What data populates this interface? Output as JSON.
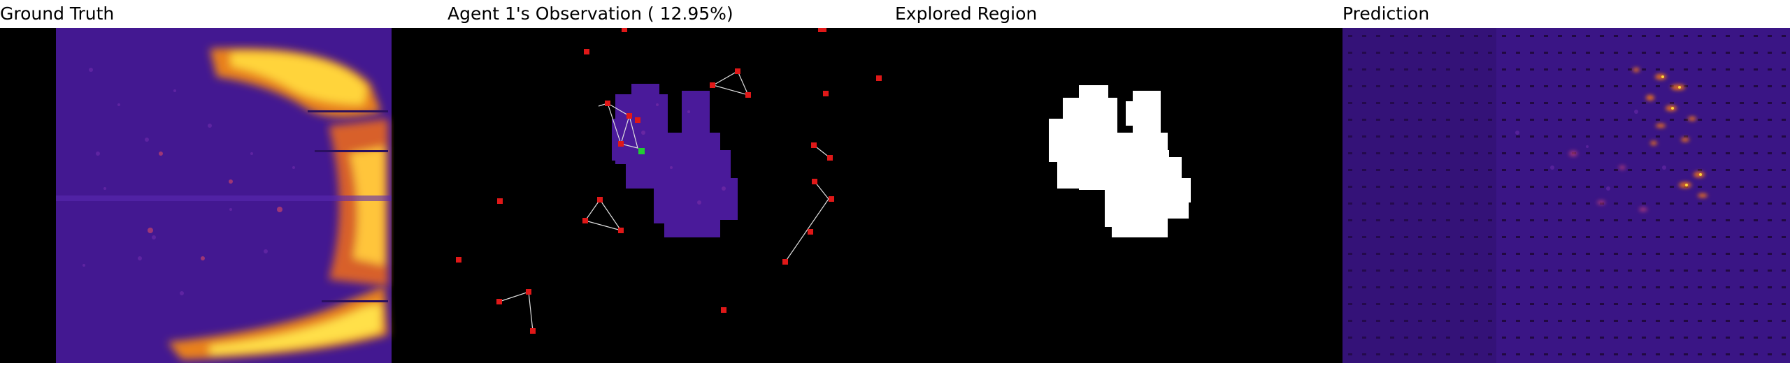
{
  "panels": {
    "ground_truth": {
      "title": "Ground Truth"
    },
    "observation": {
      "title": "Agent 1's Observation ( 12.95%)",
      "coverage_percent": 12.95
    },
    "explored": {
      "title": "Explored Region"
    },
    "prediction": {
      "title": "Prediction"
    }
  },
  "colors": {
    "background": "#000000",
    "heat_low": "#3a0f7a",
    "heat_high": "#ffd23a",
    "agent_marker": "#e01818",
    "active_agent_marker": "#22cc33",
    "explored_fill": "#ffffff"
  }
}
